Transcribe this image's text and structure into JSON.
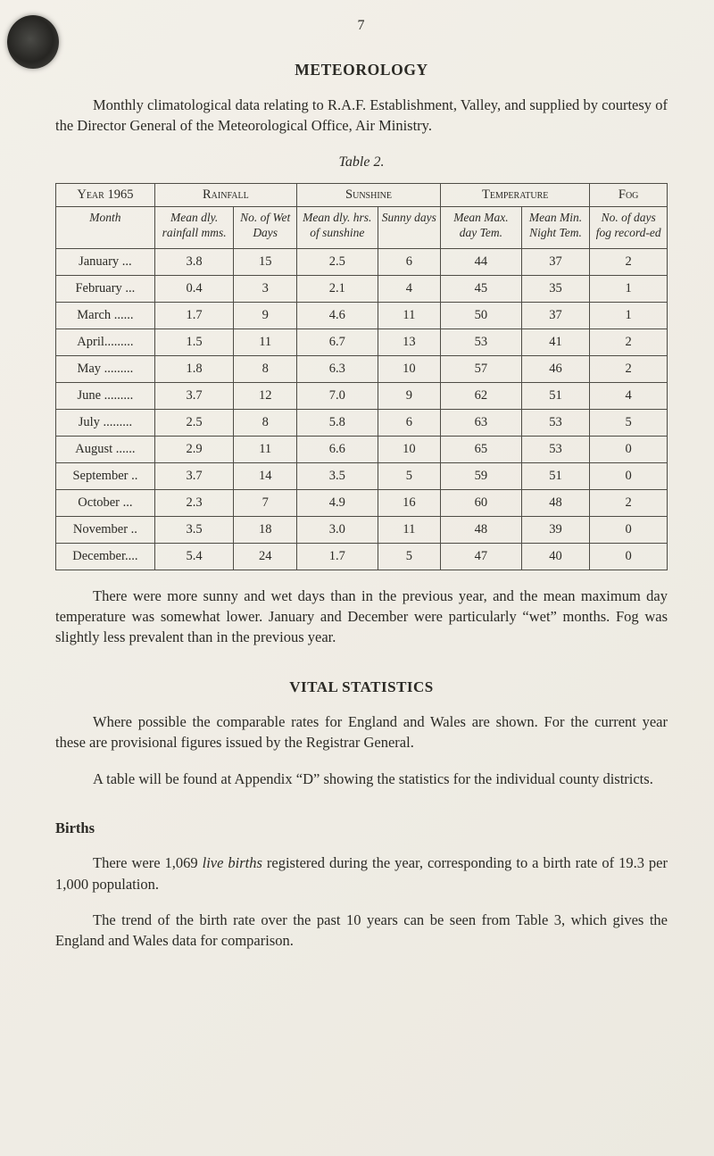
{
  "page": {
    "number": "7",
    "title": "METEOROLOGY",
    "intro": "Monthly climatological data relating to R.A.F. Establishment, Valley, and supplied by courtesy of the Director General of the Meteorological Office, Air Ministry.",
    "table_caption": "Table 2."
  },
  "table": {
    "groups": [
      "Year 1965",
      "Rainfall",
      "Sunshine",
      "Temperature",
      "Fog"
    ],
    "sub_headers": [
      "Month",
      "Mean dly. rainfall mms.",
      "No. of Wet Days",
      "Mean dly. hrs. of sunshine",
      "Sunny days",
      "Mean Max. day Tem.",
      "Mean Min. Night Tem.",
      "No. of days fog record-ed"
    ],
    "rows": [
      [
        "January ...",
        "3.8",
        "15",
        "2.5",
        "6",
        "44",
        "37",
        "2"
      ],
      [
        "February ...",
        "0.4",
        "3",
        "2.1",
        "4",
        "45",
        "35",
        "1"
      ],
      [
        "March ......",
        "1.7",
        "9",
        "4.6",
        "11",
        "50",
        "37",
        "1"
      ],
      [
        "April.........",
        "1.5",
        "11",
        "6.7",
        "13",
        "53",
        "41",
        "2"
      ],
      [
        "May .........",
        "1.8",
        "8",
        "6.3",
        "10",
        "57",
        "46",
        "2"
      ],
      [
        "June .........",
        "3.7",
        "12",
        "7.0",
        "9",
        "62",
        "51",
        "4"
      ],
      [
        "July .........",
        "2.5",
        "8",
        "5.8",
        "6",
        "63",
        "53",
        "5"
      ],
      [
        "August ......",
        "2.9",
        "11",
        "6.6",
        "10",
        "65",
        "53",
        "0"
      ],
      [
        "September ..",
        "3.7",
        "14",
        "3.5",
        "5",
        "59",
        "51",
        "0"
      ],
      [
        "October ...",
        "2.3",
        "7",
        "4.9",
        "16",
        "60",
        "48",
        "2"
      ],
      [
        "November ..",
        "3.5",
        "18",
        "3.0",
        "11",
        "48",
        "39",
        "0"
      ],
      [
        "December....",
        "5.4",
        "24",
        "1.7",
        "5",
        "47",
        "40",
        "0"
      ]
    ]
  },
  "commentary": {
    "after_table": "There were more sunny and wet days than in the previous year, and the mean maximum day temperature was somewhat lower. January and December were particularly “wet” months. Fog was slightly less prevalent than in the previous year."
  },
  "vital_statistics": {
    "heading": "VITAL STATISTICS",
    "p1": "Where possible the comparable rates for England and Wales are shown. For the current year these are provisional figures issued by the Registrar General.",
    "p2": "A table will be found at Appendix “D” showing the statistics for the individual county districts."
  },
  "births": {
    "heading": "Births",
    "p1_pre": "There were 1,069 ",
    "p1_italic": "live births",
    "p1_post": " registered during the year, corresponding to a birth rate of 19.3 per 1,000 population.",
    "p2": "The trend of the birth rate over the past 10 years can be seen from Table 3, which gives the England and Wales data for comparison."
  }
}
